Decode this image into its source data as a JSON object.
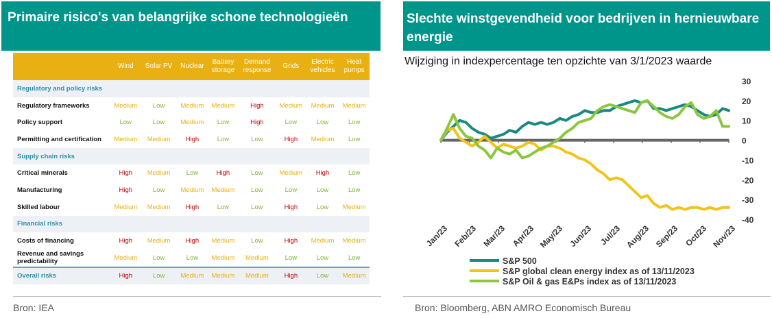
{
  "left": {
    "title": "Primaire risico's van belangrijke schone technologieën",
    "source": "Bron: IEA",
    "table": {
      "columns": [
        "Wind",
        "Solar PV",
        "Nuclear",
        "Battery storage",
        "Demand response",
        "Grids",
        "Electric vehicles",
        "Heat pumps"
      ],
      "column_lines": [
        [
          "Wind"
        ],
        [
          "Solar PV"
        ],
        [
          "Nuclear"
        ],
        [
          "Battery",
          "storage"
        ],
        [
          "Demand",
          "response"
        ],
        [
          "Grids"
        ],
        [
          "Electric",
          "vehicles"
        ],
        [
          "Heat",
          "pumps"
        ]
      ],
      "sections": [
        {
          "label": "Regulatory and policy risks",
          "rows": [
            {
              "label": "Regulatory frameworks",
              "values": [
                "Medium",
                "Low",
                "Medium",
                "Medium",
                "High",
                "Medium",
                "Medium",
                "Medium"
              ]
            },
            {
              "label": "Policy support",
              "values": [
                "Low",
                "Low",
                "Medium",
                "Low",
                "High",
                "Low",
                "Low",
                "Low"
              ]
            },
            {
              "label": "Permitting and certification",
              "values": [
                "Medium",
                "Medium",
                "High",
                "Low",
                "Low",
                "High",
                "Medium",
                "Low"
              ]
            }
          ]
        },
        {
          "label": "Supply chain risks",
          "rows": [
            {
              "label": "Critical minerals",
              "values": [
                "High",
                "Medium",
                "Low",
                "High",
                "Low",
                "Medium",
                "High",
                "Low"
              ]
            },
            {
              "label": "Manufacturing",
              "values": [
                "High",
                "Low",
                "Medium",
                "Medium",
                "Low",
                "Low",
                "Low",
                "Low"
              ]
            },
            {
              "label": "Skilled labour",
              "values": [
                "Medium",
                "Medium",
                "High",
                "Low",
                "Low",
                "High",
                "Low",
                "Medium"
              ]
            }
          ]
        },
        {
          "label": "Financial risks",
          "rows": [
            {
              "label": "Costs of financing",
              "values": [
                "High",
                "Medium",
                "High",
                "Medium",
                "Low",
                "High",
                "Medium",
                "Medium"
              ]
            },
            {
              "label": "Revenue and savings predictability",
              "values": [
                "Medium",
                "Low",
                "Low",
                "Medium",
                "Medium",
                "Low",
                "Low",
                "Low"
              ]
            }
          ]
        }
      ],
      "overall": {
        "label": "Overall risks",
        "values": [
          "High",
          "Low",
          "Medium",
          "Medium",
          "Medium",
          "High",
          "Low",
          "Medium"
        ]
      }
    }
  },
  "right": {
    "title": "Slechte winstgevendheid voor bedrijven in hernieuwbare energie",
    "subtitle": "Wijziging in indexpercentage ten opzichte van 3/1/2023 waarde",
    "source": "Bron: Bloomberg, ABN AMRO Economisch Bureau"
  },
  "chart_data": {
    "type": "line",
    "title": "Slechte winstgevendheid voor bedrijven in hernieuwbare energie",
    "subtitle": "Wijziging in indexpercentage ten opzichte van 3/1/2023 waarde",
    "x_labels": [
      "Jan/23",
      "Feb/23",
      "Mar/23",
      "Apr/23",
      "May/23",
      "Jun/23",
      "Jul/23",
      "Aug/23",
      "Sep/23",
      "Oct/23",
      "Nov/23"
    ],
    "y_ticks": [
      30,
      20,
      10,
      0,
      -10,
      -20,
      -30,
      -40
    ],
    "ylim": [
      -40,
      30
    ],
    "y_axis_side": "right",
    "legend_position": "bottom",
    "series": [
      {
        "name": "S&P 500",
        "color": "#1a8a7e",
        "values": [
          0,
          4,
          7,
          10,
          9,
          6,
          4,
          3,
          1,
          2,
          3,
          5,
          4,
          7,
          9,
          8,
          9,
          8,
          9,
          11,
          10,
          12,
          13,
          15,
          14,
          14,
          15,
          15,
          17,
          18,
          19,
          20,
          19,
          20,
          16,
          16,
          15,
          16,
          17,
          18,
          17,
          15,
          13,
          12,
          13,
          16,
          15
        ]
      },
      {
        "name": "S&P global clean energy index as of 13/11/2023",
        "color": "#f0c419",
        "values": [
          0,
          5,
          6,
          1,
          -1,
          -3,
          -1,
          2,
          -1,
          -4,
          -2,
          -3,
          -4,
          -3,
          -1,
          -2,
          -5,
          -3,
          -3,
          -4,
          -6,
          -7,
          -9,
          -10,
          -12,
          -15,
          -17,
          -20,
          -19,
          -20,
          -23,
          -26,
          -29,
          -28,
          -32,
          -34,
          -33,
          -35,
          -34,
          -35,
          -34,
          -34,
          -35,
          -34,
          -35,
          -34,
          -34
        ]
      },
      {
        "name": "S&P Oil & gas E&Ps index as of 13/11/2023",
        "color": "#8cc63f",
        "values": [
          0,
          6,
          13,
          6,
          2,
          1,
          -3,
          -5,
          -9,
          -4,
          -6,
          -7,
          -5,
          -9,
          -8,
          -6,
          -4,
          -3,
          -1,
          1,
          4,
          6,
          9,
          10,
          11,
          15,
          17,
          18,
          17,
          16,
          15,
          14,
          19,
          20,
          17,
          14,
          12,
          11,
          13,
          17,
          19,
          13,
          11,
          12,
          15,
          7,
          7
        ]
      }
    ]
  }
}
